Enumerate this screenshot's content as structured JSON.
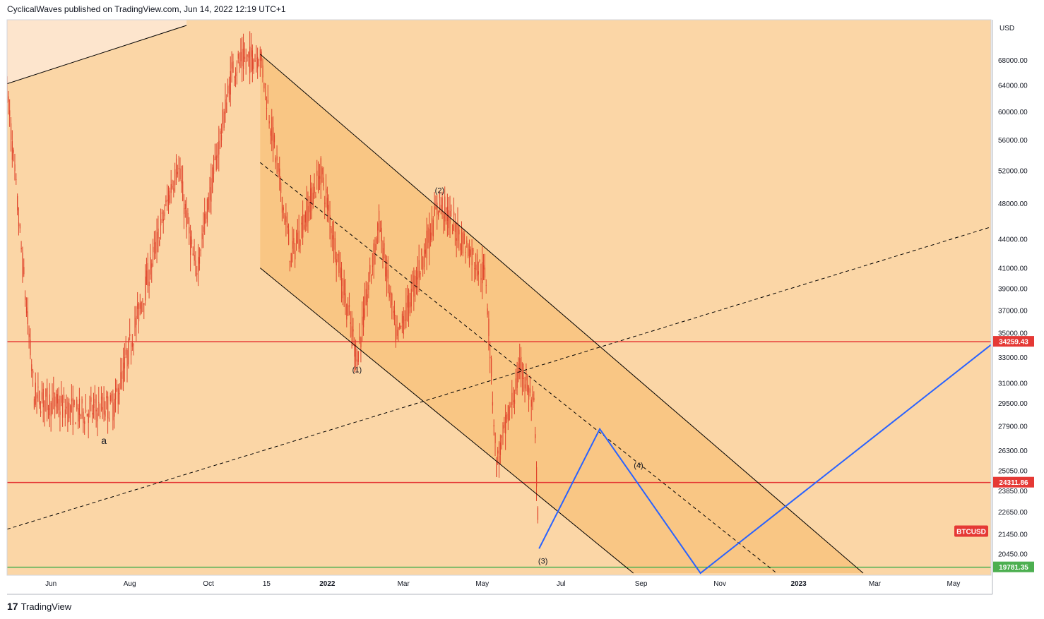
{
  "header": {
    "published": "CyclicalWaves published on TradingView.com, Jun 14, 2022 12:19 UTC+1"
  },
  "footer": {
    "logo_mark": "17",
    "brand": "TradingView"
  },
  "colors": {
    "background": "#fbd6a6",
    "channel_fill": "#f7b968",
    "upper_band": "#fde5cd",
    "candle": "#e0442b",
    "horizontal_red": "#e53935",
    "horizontal_green": "#4caf50",
    "projection": "#2962ff"
  },
  "chart_data": {
    "type": "candlestick",
    "symbol": "BTCUSD",
    "currency": "USD",
    "y_scale": "log",
    "ylim": [
      19500,
      74000
    ],
    "y_ticks": [
      "68000.00",
      "64000.00",
      "60000.00",
      "56000.00",
      "52000.00",
      "48000.00",
      "44000.00",
      "41000.00",
      "39000.00",
      "37000.00",
      "35000.00",
      "33000.00",
      "31000.00",
      "29500.00",
      "27900.00",
      "26300.00",
      "25050.00",
      "23850.00",
      "22650.00",
      "21450.00",
      "20450.00"
    ],
    "x_ticks": [
      "Jun",
      "Aug",
      "Oct",
      "15",
      "2022",
      "Mar",
      "May",
      "Jul",
      "Sep",
      "Nov",
      "2023",
      "Mar",
      "May"
    ],
    "x_range": [
      "2021-04-28",
      "2023-05-30"
    ],
    "price_lines": [
      {
        "label": "34259.43",
        "value": 34259.43,
        "color": "#e53935"
      },
      {
        "label": "24311.86",
        "value": 24311.86,
        "color": "#e53935"
      },
      {
        "label": "19781.35",
        "value": 19781.35,
        "color": "#4caf50"
      }
    ],
    "symbol_badge": "BTCUSD",
    "wave_labels": [
      {
        "text": "a",
        "date": "2021-07-12",
        "price": 26700
      },
      {
        "text": "(1)",
        "date": "2022-01-24",
        "price": 31800
      },
      {
        "text": "(2)",
        "date": "2022-03-29",
        "price": 49200
      },
      {
        "text": "(3)",
        "date": "2022-06-17",
        "price": 19950
      },
      {
        "text": "(4)",
        "date": "2022-08-30",
        "price": 25200
      }
    ],
    "key_prices": [
      {
        "date": "2021-04-28",
        "price": 63500
      },
      {
        "date": "2021-05-19",
        "price": 30000
      },
      {
        "date": "2021-06-22",
        "price": 28800
      },
      {
        "date": "2021-07-20",
        "price": 29300
      },
      {
        "date": "2021-09-07",
        "price": 52900
      },
      {
        "date": "2021-09-21",
        "price": 40500
      },
      {
        "date": "2021-10-20",
        "price": 67000
      },
      {
        "date": "2021-11-10",
        "price": 69000
      },
      {
        "date": "2021-12-04",
        "price": 42000
      },
      {
        "date": "2021-12-27",
        "price": 51900
      },
      {
        "date": "2022-01-24",
        "price": 32900
      },
      {
        "date": "2022-02-10",
        "price": 45800
      },
      {
        "date": "2022-02-24",
        "price": 34300
      },
      {
        "date": "2022-03-29",
        "price": 48200
      },
      {
        "date": "2022-05-04",
        "price": 39900
      },
      {
        "date": "2022-05-12",
        "price": 25400
      },
      {
        "date": "2022-05-31",
        "price": 32300
      },
      {
        "date": "2022-06-10",
        "price": 29000
      },
      {
        "date": "2022-06-14",
        "price": 21000
      }
    ],
    "projection_path": [
      {
        "date": "2022-06-14",
        "price": 20700
      },
      {
        "date": "2022-07-31",
        "price": 27700
      },
      {
        "date": "2022-10-17",
        "price": 19500
      },
      {
        "date": "2023-05-30",
        "price": 34000
      }
    ],
    "channel": {
      "upper": [
        {
          "date": "2021-11-10",
          "price": 69000
        },
        {
          "date": "2023-02-20",
          "price": 19500
        }
      ],
      "lower": [
        {
          "date": "2021-11-10",
          "price": 41000
        },
        {
          "date": "2022-08-26",
          "price": 19500
        }
      ],
      "mid": [
        {
          "date": "2021-11-10",
          "price": 53000
        },
        {
          "date": "2022-12-15",
          "price": 19500
        }
      ]
    },
    "trendlines": [
      {
        "style": "dashed",
        "from": {
          "date": "2021-04-28",
          "price": 21700
        },
        "to": {
          "date": "2023-05-30",
          "price": 45300
        }
      },
      {
        "style": "solid",
        "from": {
          "date": "2021-04-28",
          "price": 64200
        },
        "to": {
          "date": "2021-09-14",
          "price": 74000
        }
      }
    ]
  }
}
